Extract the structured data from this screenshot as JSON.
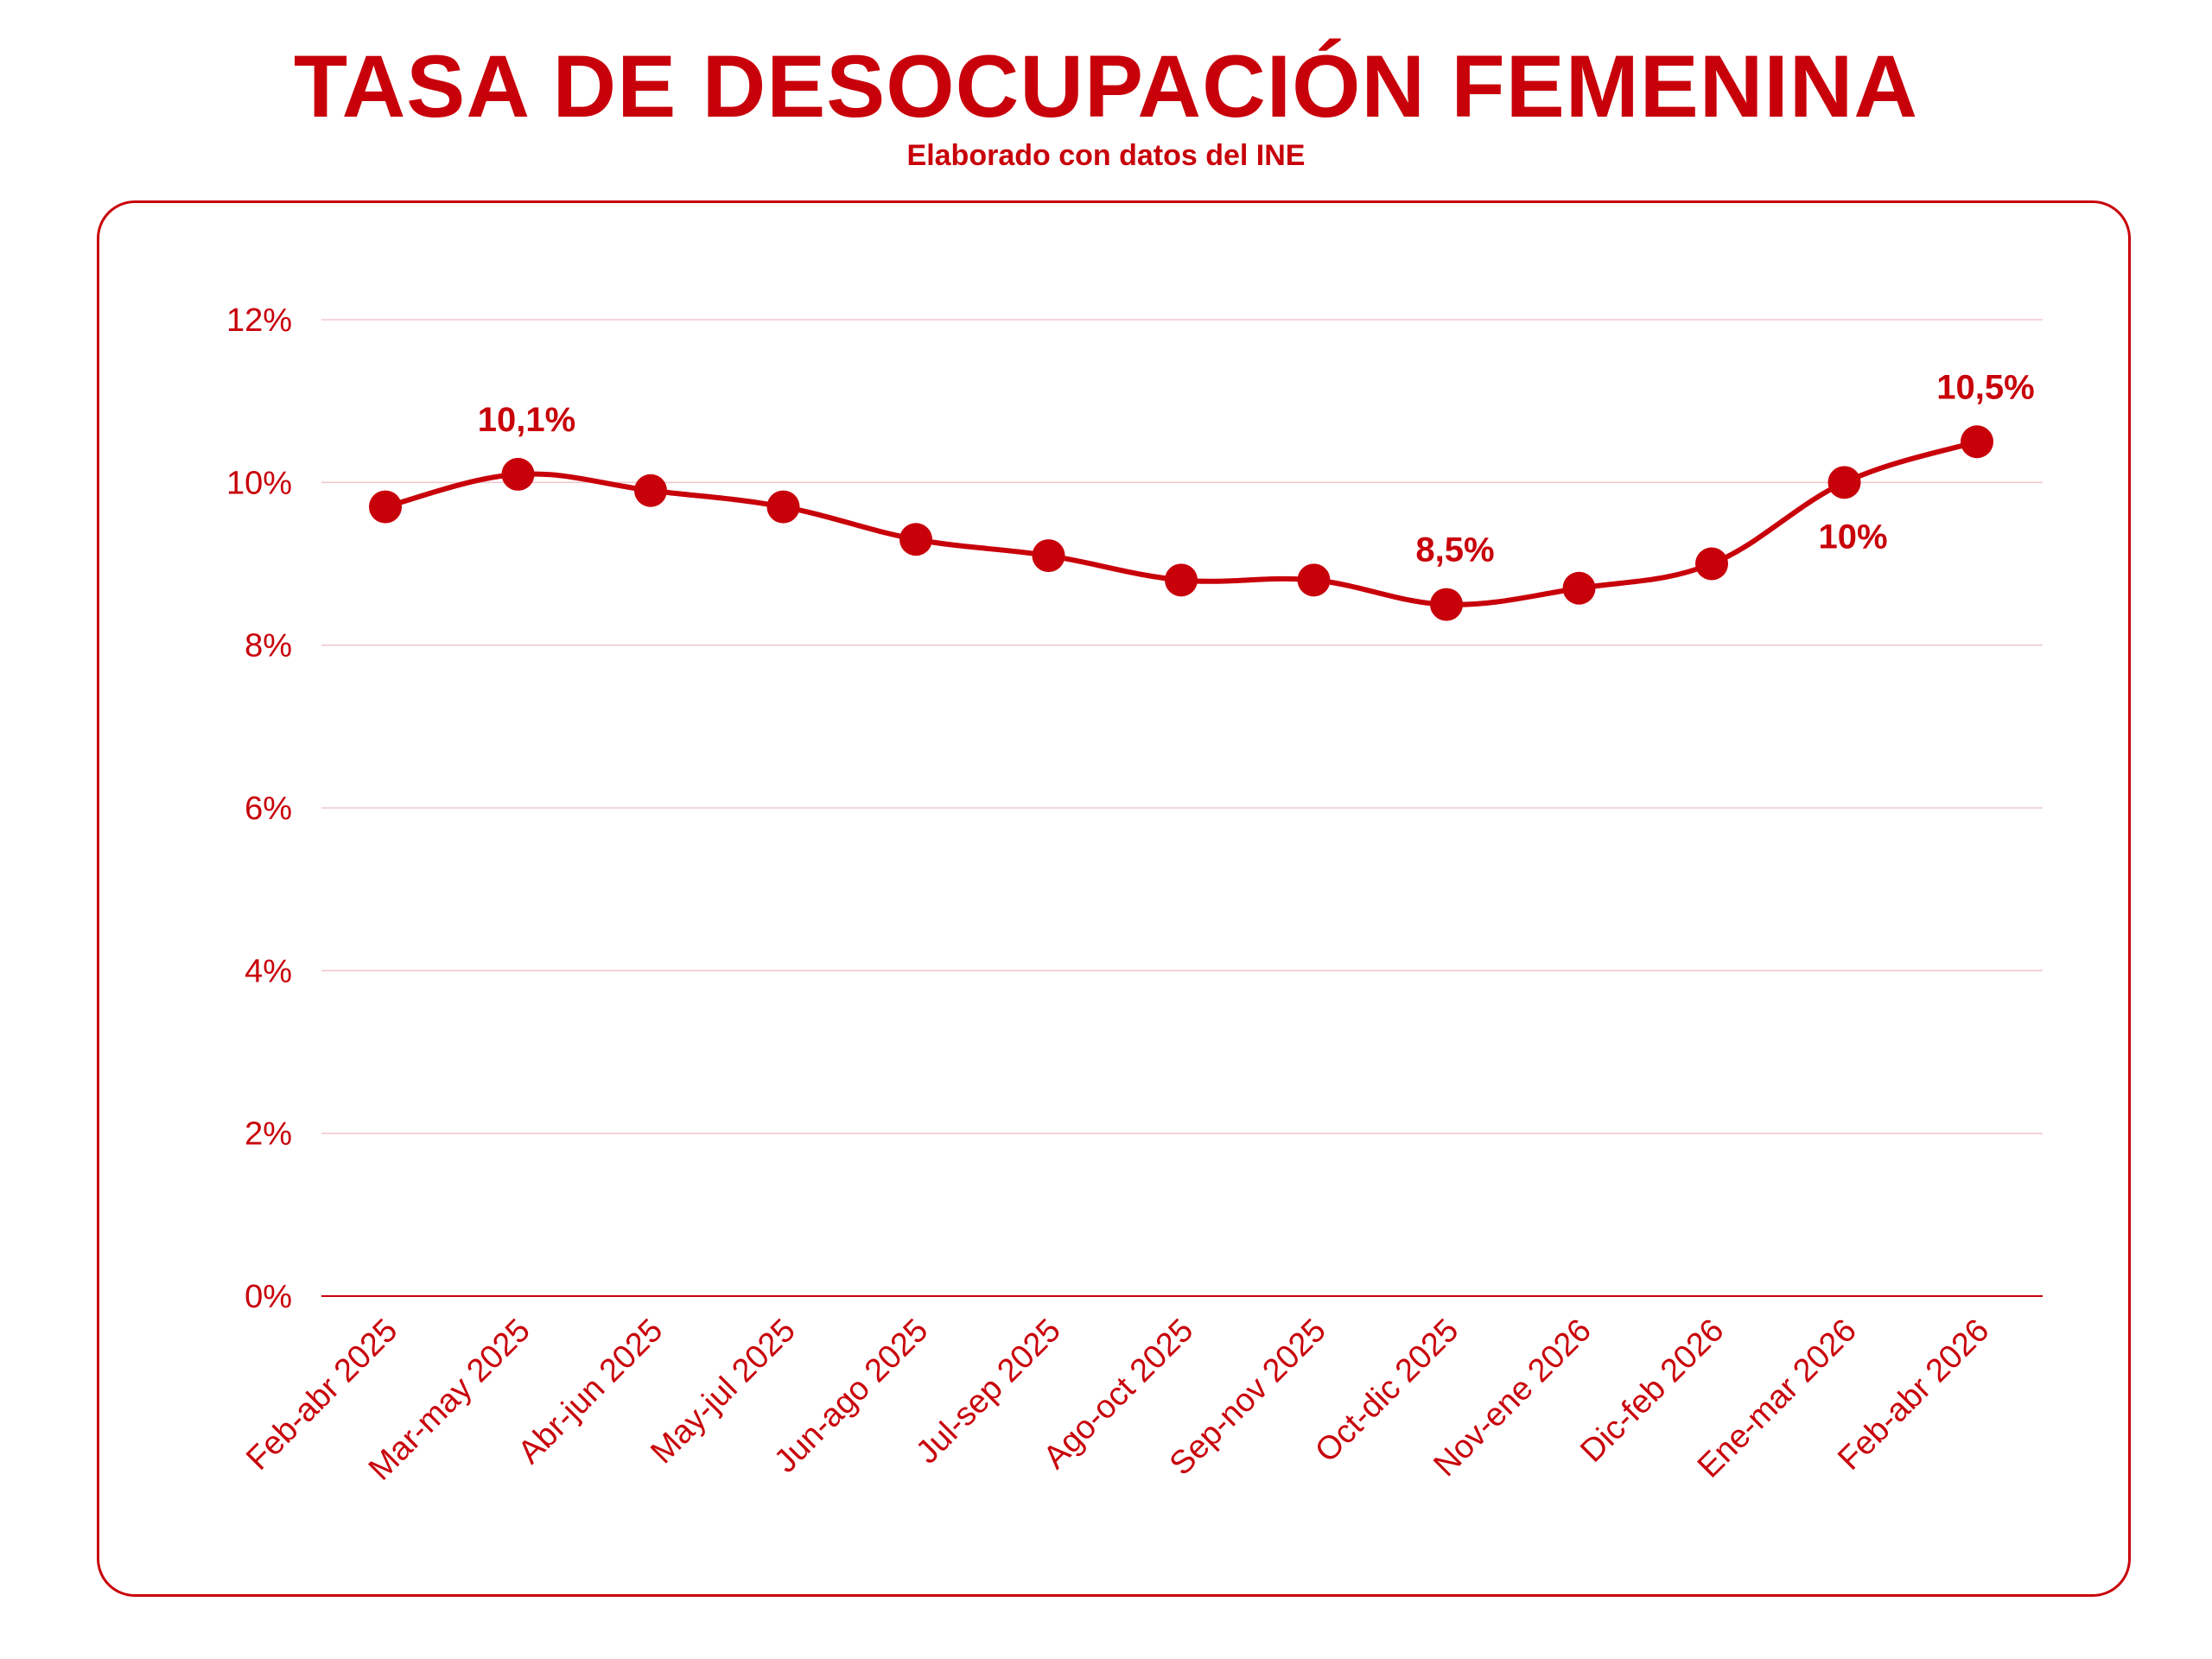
{
  "title": "TASA DE DESOCUPACIÓN FEMENINA",
  "subtitle": "Elaborado con datos del INE",
  "colors": {
    "primary": "#c8000a",
    "grid": "#f0c9cc",
    "axis": "#c8000a"
  },
  "chart_data": {
    "type": "line",
    "categories": [
      "Feb-abr 2025",
      "Mar-may 2025",
      "Abr-jun 2025",
      "May-jul 2025",
      "Jun-ago 2025",
      "Jul-sep 2025",
      "Ago-oct 2025",
      "Sep-nov 2025",
      "Oct-dic 2025",
      "Nov-ene 2026",
      "Dic-feb 2026",
      "Ene-mar 2026",
      "Feb-abr 2026"
    ],
    "series": [
      {
        "values": [
          9.7,
          10.1,
          9.9,
          9.7,
          9.3,
          9.1,
          8.8,
          8.8,
          8.5,
          8.7,
          9.0,
          10.0,
          10.5
        ]
      }
    ],
    "data_labels": [
      {
        "index": 1,
        "text": "10,1%",
        "position": "above"
      },
      {
        "index": 8,
        "text": "8,5%",
        "position": "above"
      },
      {
        "index": 11,
        "text": "10%",
        "position": "below"
      },
      {
        "index": 12,
        "text": "10,5%",
        "position": "above"
      }
    ],
    "yticks": [
      "0%",
      "2%",
      "4%",
      "6%",
      "8%",
      "10%",
      "12%"
    ],
    "ylim": [
      0,
      12
    ],
    "grid": true,
    "smooth": true
  }
}
